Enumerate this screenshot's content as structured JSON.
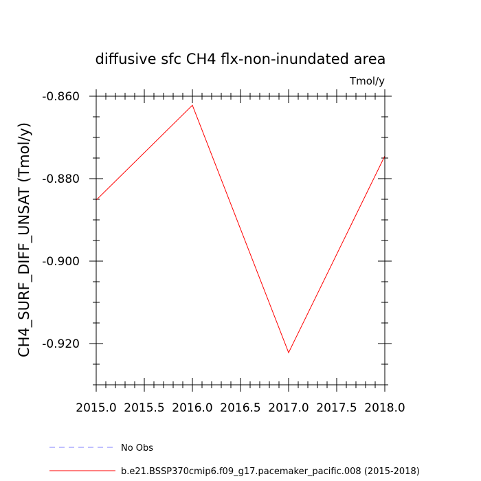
{
  "chart_data": {
    "type": "line",
    "title": "diffusive sfc CH4 flx-non-inundated area",
    "units_label": "Tmol/y",
    "xlabel": "",
    "ylabel": "CH4_SURF_DIFF_UNSAT  (Tmol/y)",
    "xlim": [
      2015.0,
      2018.0
    ],
    "ylim": [
      -0.93,
      -0.86
    ],
    "x_ticks": [
      2015.0,
      2015.5,
      2016.0,
      2016.5,
      2017.0,
      2017.5,
      2018.0
    ],
    "x_tick_labels": [
      "2015.0",
      "2015.5",
      "2016.0",
      "2016.5",
      "2017.0",
      "2017.5",
      "2018.0"
    ],
    "y_ticks": [
      -0.86,
      -0.88,
      -0.9,
      -0.92
    ],
    "y_tick_labels": [
      "-0.860",
      "-0.880",
      "-0.900",
      "-0.920"
    ],
    "x_minor_step": 0.1,
    "y_minor_step": 0.005,
    "grid": false,
    "legend_position": "bottom-left",
    "series": [
      {
        "name": "No Obs",
        "color": "#8080ff",
        "dashed": true,
        "x": [],
        "values": []
      },
      {
        "name": "b.e21.BSSP370cmip6.f09_g17.pacemaker_pacific.008 (2015-2018)",
        "color": "#ff0000",
        "dashed": false,
        "x": [
          2015.0,
          2016.0,
          2017.0,
          2018.0
        ],
        "values": [
          -0.8852,
          -0.8622,
          -0.9222,
          -0.8745
        ]
      }
    ]
  }
}
